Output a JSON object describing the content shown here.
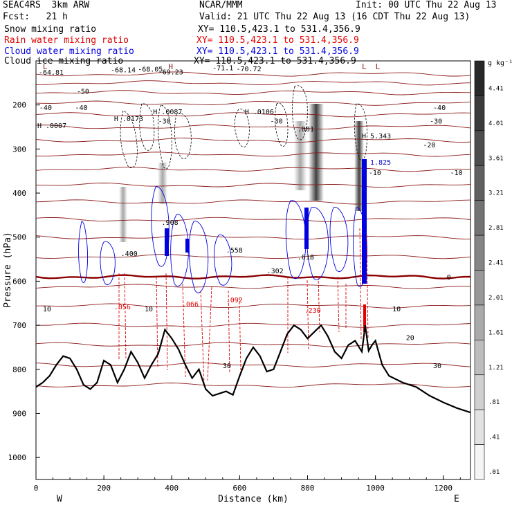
{
  "header": {
    "model": "SEAC4RS  3km ARW",
    "org": "NCAR/MMM",
    "init": "Init: 00 UTC Thu 22 Aug 13",
    "fcst": "Fcst:   21 h",
    "valid": "Valid: 21 UTC Thu 22 Aug 13 (16 CDT Thu 22 Aug 13)",
    "fields": [
      {
        "name": "Snow mixing ratio",
        "xy": "XY= 110.5,423.1 to 531.4,356.9",
        "color": "#000000"
      },
      {
        "name": "Rain water mixing ratio",
        "xy": "XY= 110.5,423.1 to 531.4,356.9",
        "color": "#e00000"
      },
      {
        "name": "Cloud water mixing ratio",
        "xy": "XY= 110.5,423.1 to 531.4,356.9",
        "color": "#0000e0"
      },
      {
        "name": "Cloud ice mixing ratio",
        "xy": "XY= 110.5,423.1 to 531.4,356.9",
        "color": "#000000"
      }
    ]
  },
  "colorbar": {
    "unit": "g kg⁻¹",
    "labels": [
      "4.41",
      "4.01",
      "3.61",
      "3.21",
      "2.81",
      "2.41",
      "2.01",
      "1.61",
      "1.21",
      ".81",
      ".41",
      ".01"
    ]
  },
  "chart_data": {
    "type": "cross-section",
    "xlabel": "Distance (km)",
    "ylabel": "Pressure (hPa)",
    "xlim": [
      0,
      1280
    ],
    "ylim": [
      1050,
      100
    ],
    "x_ticks": [
      "0",
      "200",
      "400",
      "600",
      "800",
      "1000",
      "1200"
    ],
    "y_ticks": [
      "200",
      "300",
      "400",
      "500",
      "600",
      "700",
      "800",
      "900",
      "1000"
    ],
    "left_end_label": "W",
    "right_end_label": "E",
    "terrain_surface": {
      "x": [
        0,
        20,
        40,
        60,
        80,
        100,
        120,
        140,
        160,
        180,
        200,
        220,
        240,
        260,
        280,
        300,
        320,
        340,
        360,
        380,
        400,
        420,
        440,
        460,
        480,
        500,
        520,
        540,
        560,
        580,
        600,
        620,
        640,
        660,
        680,
        700,
        720,
        740,
        760,
        780,
        800,
        820,
        840,
        860,
        880,
        900,
        920,
        940,
        960,
        970,
        980,
        990,
        1000,
        1020,
        1040,
        1080,
        1120,
        1160,
        1200,
        1240,
        1280
      ],
      "pressure": [
        840,
        830,
        815,
        790,
        770,
        775,
        800,
        835,
        845,
        830,
        780,
        790,
        830,
        800,
        760,
        785,
        820,
        790,
        765,
        710,
        730,
        755,
        790,
        820,
        800,
        845,
        860,
        855,
        850,
        858,
        815,
        775,
        750,
        770,
        805,
        800,
        760,
        720,
        700,
        710,
        730,
        715,
        700,
        725,
        760,
        775,
        745,
        735,
        760,
        700,
        758,
        745,
        735,
        790,
        815,
        830,
        840,
        860,
        875,
        888,
        898
      ]
    },
    "isotherms_c": [
      {
        "label": "-64.81",
        "p": 125
      },
      {
        "label": "-68.14",
        "p": 120
      },
      {
        "label": "-68.05",
        "p": 118
      },
      {
        "label": "-69.23",
        "p": 124
      },
      {
        "label": "-71.1",
        "p": 115
      },
      {
        "label": "-70.72",
        "p": 117
      },
      {
        "label": "-50",
        "p": 168
      },
      {
        "label": "-40",
        "p": 205
      },
      {
        "label": "-30",
        "p": 236
      },
      {
        "label": "-20",
        "p": 290
      },
      {
        "label": "-10",
        "p": 353
      },
      {
        "label": "0",
        "p": 590
      },
      {
        "label": "10",
        "p": 662
      },
      {
        "label": "20",
        "p": 727
      },
      {
        "label": "30",
        "p": 791
      }
    ],
    "extrema_labels": [
      {
        "label": "L",
        "series": "isotherm"
      },
      {
        "label": "H",
        "series": "isotherm"
      },
      {
        "label": "H .0007",
        "series": "snow"
      },
      {
        "label": "H .0173",
        "series": "snow"
      },
      {
        "label": "H .0087",
        "series": "snow"
      },
      {
        "label": "H .0106",
        "series": "snow"
      },
      {
        "label": ".001",
        "series": "snow"
      },
      {
        "label": "H 5.343",
        "series": "snow"
      },
      {
        "label": "H 1.825",
        "series": "cloud water"
      },
      {
        "label": ".400",
        "series": "cloud water"
      },
      {
        "label": ".908",
        "series": "cloud water"
      },
      {
        "label": ".558",
        "series": "cloud water"
      },
      {
        "label": ".618",
        "series": "cloud water"
      },
      {
        "label": ".302",
        "series": "cloud water"
      },
      {
        "label": ".056",
        "series": "rain"
      },
      {
        "label": ".066",
        "series": "rain"
      },
      {
        "label": ".092",
        "series": "rain"
      },
      {
        "label": ".230",
        "series": "rain"
      }
    ]
  }
}
